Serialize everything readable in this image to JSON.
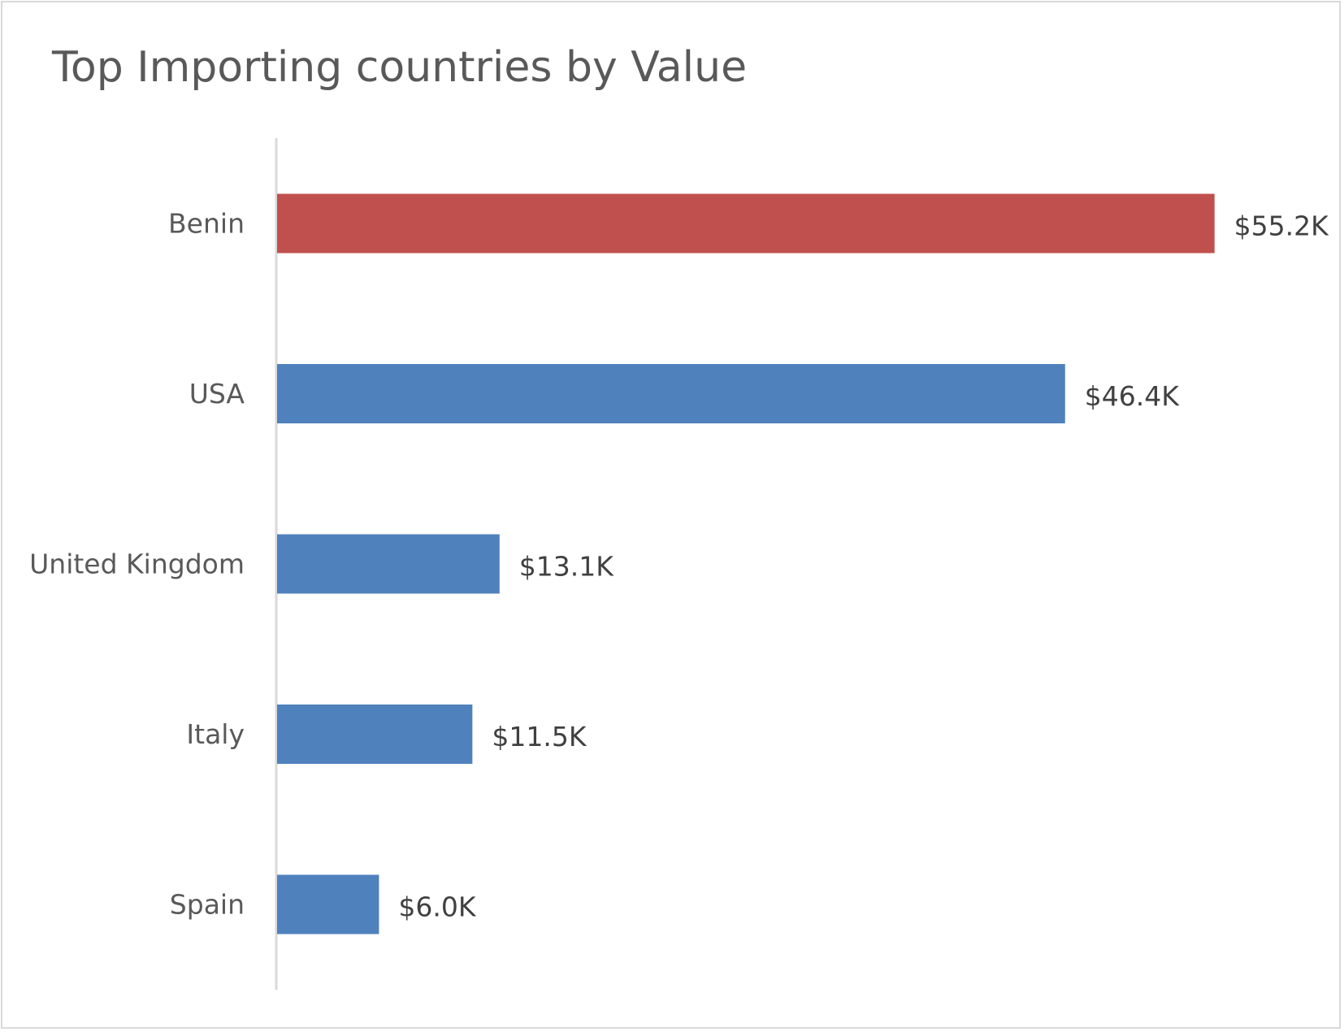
{
  "chart_data": {
    "type": "bar",
    "orientation": "horizontal",
    "title": "Top Importing countries by Value",
    "xlabel": "",
    "ylabel": "",
    "categories": [
      "Benin",
      "USA",
      "United Kingdom",
      "Italy",
      "Spain"
    ],
    "values": [
      55.2,
      46.4,
      13.1,
      11.5,
      6.0
    ],
    "value_unit": "$K",
    "data_labels": [
      "$55.2K",
      "$46.4K",
      "$13.1K",
      "$11.5K",
      "$6.0K"
    ],
    "colors": [
      "#c0504d",
      "#4f81bd",
      "#4f81bd",
      "#4f81bd",
      "#4f81bd"
    ],
    "highlight_color": "#c0504d",
    "bar_color": "#4f81bd",
    "xlim": [
      0,
      60
    ],
    "grid": false,
    "legend": "none"
  }
}
